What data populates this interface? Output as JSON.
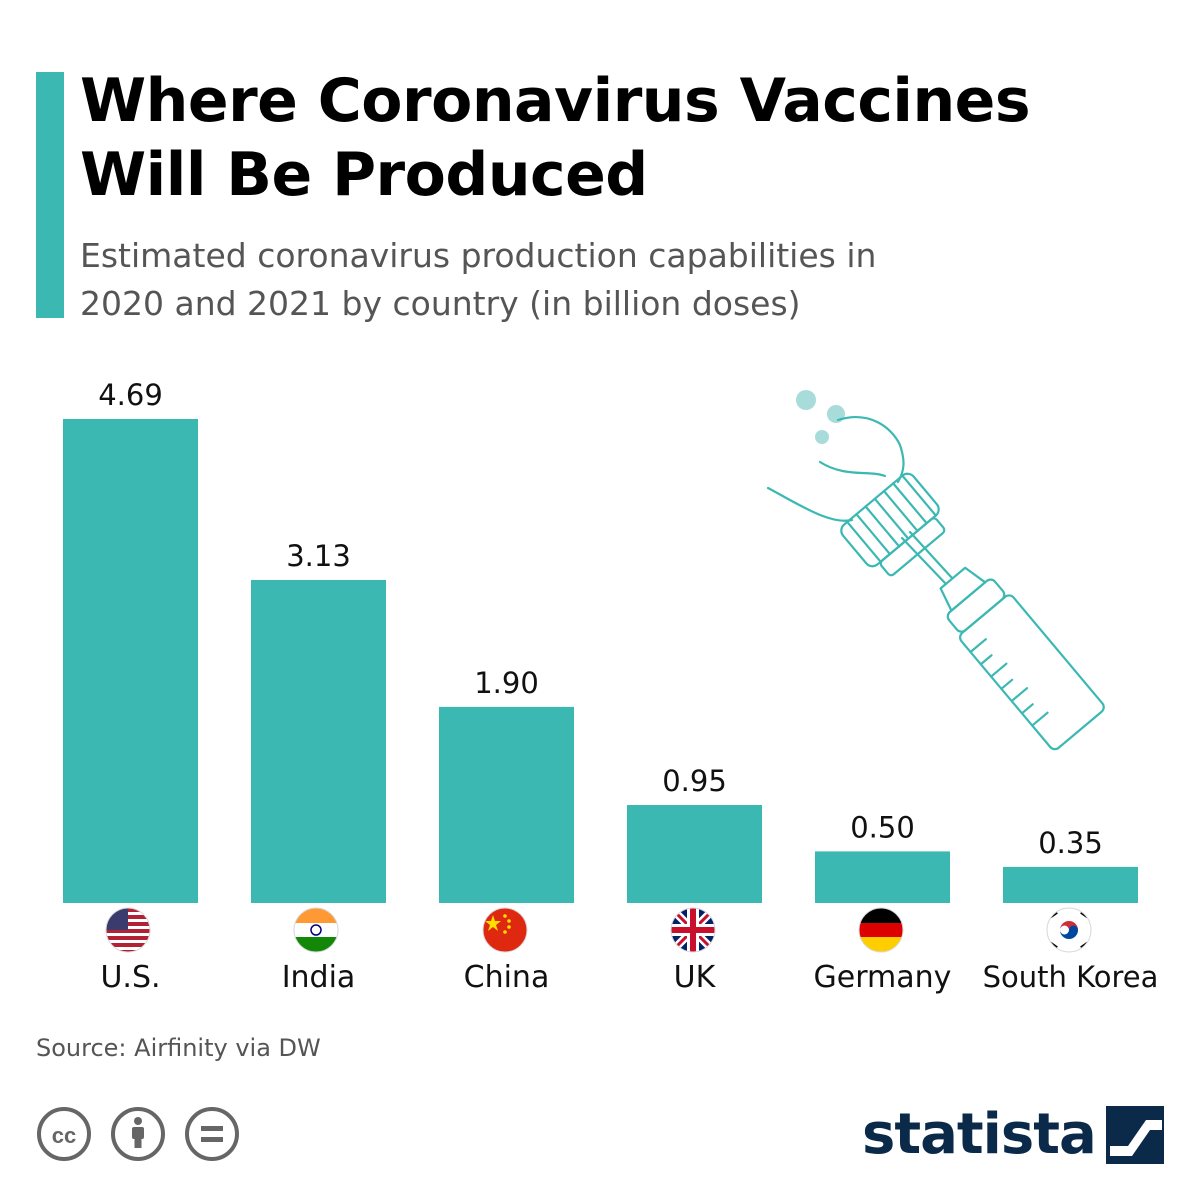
{
  "title_lines": [
    "Where Coronavirus Vaccines",
    "Will Be Produced"
  ],
  "subtitle_lines": [
    "Estimated coronavirus production capabilities in",
    "2020 and 2021 by country (in billion doses)"
  ],
  "source": "Source: Airfinity via DW",
  "brand": "statista",
  "colors": {
    "accent": "#3cb8b3",
    "bar": "#3cb8b3",
    "text": "#000000",
    "muted": "#555555",
    "brand": "#0b2a4a"
  },
  "license_icons": [
    "creative-commons-icon",
    "attribution-icon",
    "no-derivatives-icon"
  ],
  "illustration": "syringe-vial-icon",
  "chart_data": {
    "type": "bar",
    "title": "Where Coronavirus Vaccines Will Be Produced",
    "subtitle": "Estimated coronavirus production capabilities in 2020 and 2021 by country (in billion doses)",
    "categories": [
      "U.S.",
      "India",
      "China",
      "UK",
      "Germany",
      "South Korea"
    ],
    "values": [
      4.69,
      3.13,
      1.9,
      0.95,
      0.5,
      0.35
    ],
    "value_labels": [
      "4.69",
      "3.13",
      "1.90",
      "0.95",
      "0.50",
      "0.35"
    ],
    "flags": [
      "us-flag-icon",
      "india-flag-icon",
      "china-flag-icon",
      "uk-flag-icon",
      "germany-flag-icon",
      "south-korea-flag-icon"
    ],
    "xlabel": "",
    "ylabel": "",
    "ylim": [
      0,
      4.69
    ],
    "grid": false,
    "legend": "none"
  }
}
